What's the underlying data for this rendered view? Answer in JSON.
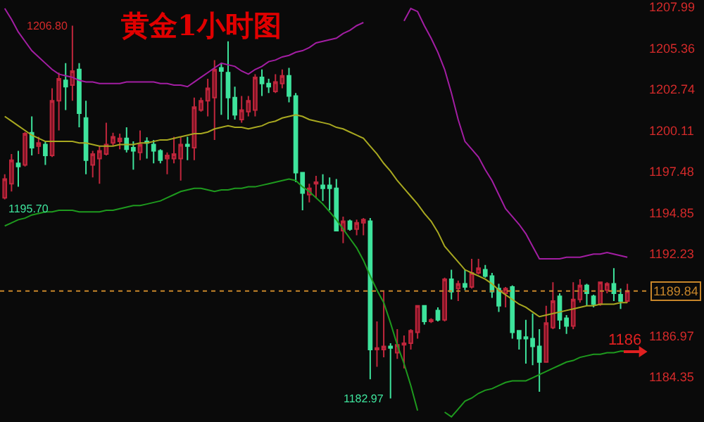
{
  "chart_data": {
    "type": "candlestick",
    "title": "黄金1小时图",
    "categories": [
      null,
      null,
      null,
      null,
      null,
      null,
      null,
      null,
      null,
      null,
      null,
      null,
      null,
      null,
      null,
      null,
      null,
      null,
      null,
      null,
      null,
      null,
      null,
      null,
      null,
      null,
      null,
      null,
      null,
      null,
      null,
      null,
      null,
      null,
      null,
      null,
      null,
      null,
      null,
      null,
      null,
      null,
      null,
      null,
      null,
      null,
      null,
      null,
      null,
      null,
      null,
      null,
      null,
      null,
      null,
      null,
      null,
      null,
      null,
      null,
      null,
      null,
      null,
      null,
      null,
      null,
      null,
      null,
      null,
      null,
      null,
      null,
      null,
      null,
      null,
      null,
      null,
      null,
      null,
      null,
      null,
      null,
      null,
      null,
      null,
      null,
      null,
      null,
      null,
      null,
      null,
      null,
      null
    ],
    "ohlc": [
      [
        1195.8,
        1197.3,
        1195.7,
        1197.0
      ],
      [
        1196.7,
        1198.6,
        1196.2,
        1198.2
      ],
      [
        1198.0,
        1198.8,
        1196.5,
        1197.8
      ],
      [
        1197.9,
        1200.0,
        1197.8,
        1199.9
      ],
      [
        1199.96,
        1201.0,
        1198.5,
        1199.0
      ],
      [
        1199.1,
        1199.7,
        1198.6,
        1199.3
      ],
      [
        1199.2,
        1199.4,
        1197.9,
        1198.5
      ],
      [
        1198.5,
        1202.8,
        1198.4,
        1202.0
      ],
      [
        1202.0,
        1203.8,
        1200.1,
        1203.4
      ],
      [
        1203.3,
        1204.4,
        1201.4,
        1202.9
      ],
      [
        1203.0,
        1206.8,
        1202.0,
        1203.9
      ],
      [
        1204.0,
        1204.4,
        1200.3,
        1201.2
      ],
      [
        1200.9,
        1202.0,
        1197.3,
        1198.2
      ],
      [
        1197.9,
        1198.8,
        1197.1,
        1198.6
      ],
      [
        1198.3,
        1199.1,
        1196.7,
        1198.8
      ],
      [
        1198.6,
        1200.6,
        1198.5,
        1199.2
      ],
      [
        1199.3,
        1199.95,
        1199.1,
        1199.7
      ],
      [
        1199.4,
        1199.9,
        1198.9,
        1199.6
      ],
      [
        1199.6,
        1200.3,
        1198.7,
        1198.9
      ],
      [
        1199.0,
        1199.4,
        1197.6,
        1198.8
      ],
      [
        1198.7,
        1200.1,
        1198.2,
        1199.2
      ],
      [
        1199.4,
        1199.66,
        1198.3,
        1199.3
      ],
      [
        1199.2,
        1199.5,
        1198.0,
        1198.8
      ],
      [
        1198.8,
        1198.9,
        1198.0,
        1198.2
      ],
      [
        1198.3,
        1198.7,
        1197.3,
        1198.5
      ],
      [
        1198.3,
        1199.7,
        1198.0,
        1198.6
      ],
      [
        1198.3,
        1199.7,
        1196.9,
        1199.2
      ],
      [
        1199.2,
        1199.7,
        1198.2,
        1199.1
      ],
      [
        1199.0,
        1202.2,
        1198.2,
        1201.6
      ],
      [
        1201.4,
        1202.2,
        1201.3,
        1202.0
      ],
      [
        1202.0,
        1203.4,
        1201.0,
        1202.8
      ],
      [
        1202.2,
        1204.6,
        1199.5,
        1204.0
      ],
      [
        1204.1,
        1204.4,
        1201.1,
        1203.9
      ],
      [
        1203.8,
        1205.8,
        1200.8,
        1202.2
      ],
      [
        1202.2,
        1202.9,
        1200.8,
        1201.1
      ],
      [
        1200.8,
        1202.3,
        1200.6,
        1201.4
      ],
      [
        1201.3,
        1202.3,
        1201.0,
        1202.0
      ],
      [
        1201.4,
        1203.7,
        1201.0,
        1203.5
      ],
      [
        1203.5,
        1204.0,
        1202.3,
        1203.1
      ],
      [
        1203.1,
        1203.4,
        1202.5,
        1202.9
      ],
      [
        1202.6,
        1203.7,
        1202.5,
        1203.2
      ],
      [
        1203.1,
        1204.0,
        1202.8,
        1203.6
      ],
      [
        1203.6,
        1204.1,
        1201.9,
        1202.3
      ],
      [
        1202.3,
        1202.5,
        1196.8,
        1197.4
      ],
      [
        1197.4,
        1197.4,
        1195.0,
        1196.1
      ],
      [
        1196.0,
        1196.7,
        1195.5,
        1196.4
      ],
      [
        1196.7,
        1197.2,
        1195.8,
        1196.8
      ],
      [
        1196.6,
        1197.3,
        1195.6,
        1196.4
      ],
      [
        1196.6,
        1197.1,
        1195.0,
        1196.4
      ],
      [
        1196.4,
        1197.0,
        1193.7,
        1193.7
      ],
      [
        1193.7,
        1194.6,
        1192.9,
        1194.3
      ],
      [
        1194.3,
        1194.4,
        1193.7,
        1193.8
      ],
      [
        1193.8,
        1194.4,
        1193.4,
        1194.2
      ],
      [
        1194.2,
        1194.5,
        1193.4,
        1194.4
      ],
      [
        1194.3,
        1194.5,
        1184.2,
        1186.1
      ],
      [
        1186.1,
        1187.9,
        1185.0,
        1186.2
      ],
      [
        1186.1,
        1189.8,
        1185.6,
        1186.3
      ],
      [
        1186.3,
        1186.5,
        1182.97,
        1186.2
      ],
      [
        1185.9,
        1187.4,
        1185.5,
        1186.4
      ],
      [
        1186.4,
        1187.0,
        1184.9,
        1186.5
      ],
      [
        1186.5,
        1187.4,
        1186.1,
        1187.3
      ],
      [
        1187.2,
        1188.9,
        1186.8,
        1188.9
      ],
      [
        1188.9,
        1188.9,
        1187.7,
        1187.9
      ],
      [
        1187.9,
        1188.1,
        1187.8,
        1188.0
      ],
      [
        1188.6,
        1188.8,
        1187.9,
        1188.0
      ],
      [
        1188.0,
        1190.7,
        1187.9,
        1190.6
      ],
      [
        1190.6,
        1191.2,
        1189.3,
        1189.8
      ],
      [
        1190.0,
        1190.5,
        1189.2,
        1190.3
      ],
      [
        1190.3,
        1191.2,
        1189.9,
        1190.1
      ],
      [
        1190.1,
        1191.9,
        1190.0,
        1191.0
      ],
      [
        1191.0,
        1191.9,
        1190.9,
        1191.3
      ],
      [
        1191.2,
        1191.5,
        1190.7,
        1190.8
      ],
      [
        1190.8,
        1191.0,
        1189.4,
        1189.8
      ],
      [
        1190.0,
        1190.3,
        1188.5,
        1188.9
      ],
      [
        1189.7,
        1190.1,
        1188.8,
        1190.0
      ],
      [
        1190.1,
        1190.2,
        1186.8,
        1187.2
      ],
      [
        1187.3,
        1187.3,
        1186.1,
        1186.8
      ],
      [
        1186.9,
        1188.0,
        1185.2,
        1186.8
      ],
      [
        1186.8,
        1188.4,
        1185.1,
        1186.3
      ],
      [
        1186.3,
        1187.4,
        1183.4,
        1185.3
      ],
      [
        1185.3,
        1188.9,
        1185.3,
        1187.8
      ],
      [
        1187.5,
        1190.4,
        1187.4,
        1189.2
      ],
      [
        1189.5,
        1189.7,
        1187.4,
        1188.0
      ],
      [
        1188.1,
        1188.3,
        1187.1,
        1187.6
      ],
      [
        1187.6,
        1190.4,
        1187.4,
        1189.3
      ],
      [
        1189.3,
        1190.6,
        1189.1,
        1190.2
      ],
      [
        1190.2,
        1190.3,
        1188.9,
        1189.7
      ],
      [
        1189.5,
        1189.6,
        1188.8,
        1189.0
      ],
      [
        1189.0,
        1190.4,
        1188.9,
        1190.4
      ],
      [
        1189.9,
        1190.4,
        1189.7,
        1190.3
      ],
      [
        1190.3,
        1191.3,
        1189.2,
        1189.7
      ],
      [
        1189.6,
        1190.0,
        1188.7,
        1189.2
      ],
      [
        1189.2,
        1190.3,
        1189.1,
        1189.84
      ]
    ],
    "series": [
      {
        "type": "line",
        "color": "#a31ea3",
        "values": [
          1207.9,
          1207.2,
          1206.4,
          1205.8,
          1205.2,
          1204.8,
          1204.4,
          1204.0,
          1203.7,
          1203.6,
          1203.5,
          1203.3,
          1203.2,
          1203.2,
          1203.1,
          1203.1,
          1203.1,
          1203.1,
          1203.2,
          1203.2,
          1203.2,
          1203.2,
          1203.2,
          1203.1,
          1203.1,
          1203.0,
          1203.0,
          1202.9,
          1203.2,
          1203.5,
          1203.8,
          1204.1,
          1204.4,
          1204.3,
          1204.2,
          1203.9,
          1203.7,
          1204.0,
          1204.2,
          1204.5,
          1204.6,
          1204.8,
          1204.9,
          1205.1,
          1205.2,
          1205.4,
          1205.7,
          1205.8,
          1205.9,
          1206.0,
          1206.3,
          1206.5,
          1206.8,
          1207.0,
          null,
          null,
          null,
          null,
          null,
          1207.1,
          1207.9,
          1207.7,
          1206.8,
          1206.0,
          1205.1,
          1204.0,
          1202.5,
          1200.8,
          1199.4,
          1198.9,
          1198.4,
          1197.6,
          1196.9,
          1196.0,
          1195.1,
          1194.6,
          1194.1,
          1193.5,
          1192.7,
          1191.9,
          1191.9,
          1191.9,
          1191.9,
          1192.0,
          1192.0,
          1192.0,
          1192.1,
          1192.2,
          1192.2,
          1192.3,
          1192.2,
          1192.1,
          1192.0
        ]
      },
      {
        "type": "line",
        "color": "#a8a820",
        "values": [
          1201.0,
          1200.7,
          1200.4,
          1200.1,
          1199.8,
          1199.6,
          1199.4,
          1199.4,
          1199.4,
          1199.4,
          1199.4,
          1199.3,
          1199.3,
          1199.2,
          1199.1,
          1199.1,
          1199.1,
          1199.2,
          1199.2,
          1199.2,
          1199.3,
          1199.3,
          1199.4,
          1199.5,
          1199.5,
          1199.6,
          1199.7,
          1199.8,
          1199.9,
          1199.9,
          1200.0,
          1200.2,
          1200.3,
          1200.4,
          1200.3,
          1200.3,
          1200.2,
          1200.3,
          1200.4,
          1200.6,
          1200.7,
          1200.9,
          1201.0,
          1201.1,
          1201.0,
          1200.8,
          1200.7,
          1200.6,
          1200.5,
          1200.3,
          1200.2,
          1200.0,
          1199.8,
          1199.6,
          1199.1,
          1198.6,
          1198.0,
          1197.5,
          1196.9,
          1196.4,
          1195.9,
          1195.4,
          1194.8,
          1194.3,
          1193.6,
          1192.7,
          1192.2,
          1191.7,
          1191.2,
          1191.0,
          1190.8,
          1190.6,
          1190.3,
          1189.9,
          1189.6,
          1189.3,
          1189.0,
          1188.8,
          1188.5,
          1188.2,
          1188.3,
          1188.4,
          1188.5,
          1188.6,
          1188.7,
          1188.8,
          1188.9,
          1188.9,
          1189.0,
          1189.0,
          1189.0,
          1189.1,
          1189.1
        ]
      },
      {
        "type": "line",
        "color": "#1e9a1e",
        "values": [
          1194.0,
          1194.2,
          1194.4,
          1194.5,
          1194.7,
          1194.8,
          1194.9,
          1194.9,
          1195.0,
          1195.0,
          1195.0,
          1194.9,
          1194.9,
          1194.9,
          1194.9,
          1195.0,
          1195.0,
          1195.1,
          1195.2,
          1195.3,
          1195.3,
          1195.4,
          1195.5,
          1195.6,
          1195.8,
          1196.0,
          1196.2,
          1196.3,
          1196.4,
          1196.4,
          1196.3,
          1196.2,
          1196.3,
          1196.3,
          1196.4,
          1196.4,
          1196.5,
          1196.5,
          1196.6,
          1196.7,
          1196.8,
          1196.9,
          1197.0,
          1196.9,
          1196.5,
          1196.2,
          1195.8,
          1195.4,
          1194.9,
          1194.4,
          1193.8,
          1193.2,
          1192.6,
          1191.8,
          1190.8,
          1189.9,
          1189.1,
          1187.8,
          1186.4,
          1185.2,
          1183.8,
          1182.2,
          null,
          null,
          null,
          1182.1,
          1181.8,
          1182.3,
          1182.8,
          1183.0,
          1183.3,
          1183.5,
          1183.6,
          1183.8,
          1184.0,
          1184.1,
          1184.1,
          1184.1,
          1184.3,
          1184.5,
          1184.7,
          1184.9,
          1185.1,
          1185.3,
          1185.4,
          1185.6,
          1185.7,
          1185.8,
          1185.8,
          1185.9,
          1185.9,
          1186.0,
          1186.0
        ]
      }
    ],
    "ylim": [
      1181.47,
      1207.99
    ],
    "yticks": [
      1207.99,
      1205.36,
      1202.74,
      1200.11,
      1197.48,
      1194.85,
      1192.23,
      1186.97,
      1184.35
    ],
    "ref_lines": [
      {
        "axis": "y",
        "value": 1189.84,
        "label": "1189.84",
        "color": "#c8862a",
        "line_style": "dotted"
      }
    ],
    "annotations": [
      "1206.80",
      "1195.70",
      "1182.97",
      "1186"
    ],
    "tick_labels": "y"
  }
}
